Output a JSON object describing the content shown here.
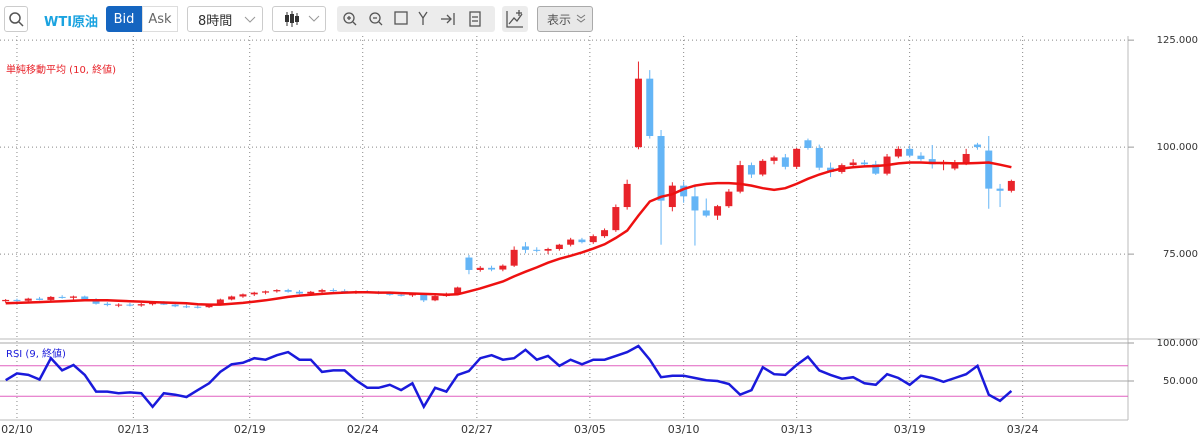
{
  "toolbar": {
    "instrument": "WTI原油",
    "bid": "Bid",
    "ask": "Ask",
    "interval": "8時間",
    "view": "表示"
  },
  "chart_data": [
    {
      "type": "candlestick",
      "xlim": [
        -0.5,
        99.5
      ],
      "ylim": [
        55.4,
        125.5
      ],
      "yticks": [
        {
          "value": 125,
          "label": "125.000"
        },
        {
          "value": 100,
          "label": "100.000"
        },
        {
          "value": 75,
          "label": "75.000"
        }
      ],
      "grid": true,
      "up_color": "#e8232a",
      "down_color": "#64b5f6",
      "ohlc": {
        "open": [
          64.0,
          64.3,
          64.1,
          64.6,
          64.3,
          65.0,
          64.8,
          65.1,
          64.4,
          63.4,
          63.1,
          63.2,
          63.0,
          63.3,
          63.6,
          63.2,
          62.8,
          62.7,
          62.6,
          63.3,
          64.4,
          65.1,
          65.6,
          66.0,
          66.3,
          66.6,
          66.2,
          65.8,
          66.2,
          66.6,
          66.4,
          66.1,
          66.3,
          66.0,
          65.8,
          65.5,
          65.4,
          65.6,
          64.2,
          65.2,
          65.6,
          74.2,
          71.3,
          71.8,
          71.4,
          72.3,
          76.8,
          76.0,
          75.8,
          76.2,
          77.2,
          78.4,
          77.8,
          79.2,
          80.6,
          86.0,
          100.0,
          116.0,
          102.6,
          86.0,
          91.0,
          88.5,
          85.2,
          84.0,
          86.2,
          89.6,
          95.8,
          93.6,
          96.8,
          97.6,
          95.4,
          101.6,
          99.8,
          95.2,
          94.2,
          95.8,
          96.4,
          96.0,
          93.8,
          97.8,
          99.6,
          98.0,
          97.2,
          96.0,
          95.0,
          96.2,
          100.6,
          99.2,
          90.3,
          89.8
        ],
        "high": [
          64.5,
          64.6,
          64.8,
          65.0,
          65.2,
          65.4,
          65.3,
          65.3,
          64.7,
          63.8,
          63.5,
          63.6,
          63.6,
          63.9,
          64.0,
          63.5,
          63.2,
          63.0,
          63.4,
          64.6,
          65.3,
          65.8,
          66.2,
          66.5,
          66.8,
          66.9,
          66.6,
          66.4,
          66.9,
          67.0,
          66.8,
          66.5,
          66.6,
          66.4,
          66.2,
          65.9,
          65.8,
          65.9,
          65.4,
          66.0,
          67.4,
          74.8,
          72.2,
          72.3,
          72.6,
          76.8,
          77.8,
          76.6,
          76.5,
          77.4,
          78.8,
          78.8,
          79.6,
          81.0,
          86.6,
          92.4,
          120.0,
          118.0,
          104.0,
          91.8,
          92.0,
          91.0,
          88.0,
          86.5,
          90.2,
          96.8,
          96.4,
          97.2,
          98.0,
          98.4,
          99.8,
          102.0,
          100.6,
          96.4,
          96.2,
          97.2,
          97.0,
          96.8,
          98.4,
          100.2,
          100.4,
          98.8,
          100.5,
          97.0,
          97.0,
          99.6,
          101.0,
          102.6,
          91.4,
          92.4
        ],
        "low": [
          63.6,
          63.9,
          63.8,
          64.2,
          64.0,
          64.6,
          64.4,
          64.3,
          63.2,
          62.8,
          62.6,
          62.8,
          62.7,
          63.0,
          63.1,
          62.6,
          62.4,
          62.3,
          62.4,
          63.1,
          64.2,
          64.8,
          65.2,
          65.6,
          66.0,
          66.0,
          65.6,
          65.4,
          65.9,
          66.2,
          65.9,
          65.7,
          65.8,
          65.6,
          65.3,
          65.1,
          65.0,
          63.8,
          64.0,
          65.0,
          65.4,
          70.3,
          70.9,
          71.0,
          71.0,
          72.0,
          75.2,
          75.4,
          75.0,
          75.8,
          76.8,
          77.5,
          77.4,
          78.8,
          80.2,
          85.4,
          99.5,
          102.0,
          77.2,
          85.0,
          87.0,
          77.0,
          83.6,
          83.0,
          85.8,
          89.2,
          92.8,
          93.2,
          96.0,
          94.8,
          94.9,
          99.4,
          94.6,
          93.0,
          93.8,
          95.4,
          95.5,
          93.5,
          93.4,
          97.4,
          97.6,
          96.8,
          95.0,
          94.6,
          94.6,
          95.8,
          99.4,
          85.6,
          86.0,
          89.4
        ],
        "close": [
          64.3,
          64.1,
          64.6,
          64.3,
          65.0,
          64.8,
          65.1,
          64.4,
          63.4,
          63.1,
          63.2,
          63.0,
          63.3,
          63.6,
          63.2,
          62.8,
          62.7,
          62.6,
          63.3,
          64.4,
          65.1,
          65.6,
          66.0,
          66.3,
          66.6,
          66.2,
          65.8,
          66.2,
          66.6,
          66.4,
          66.1,
          66.3,
          66.0,
          65.8,
          65.5,
          65.4,
          65.6,
          64.2,
          65.2,
          65.6,
          67.2,
          71.3,
          71.8,
          71.4,
          72.3,
          76.0,
          76.0,
          75.8,
          76.2,
          77.2,
          78.4,
          77.8,
          79.2,
          80.6,
          86.0,
          91.4,
          116.0,
          102.6,
          87.5,
          91.0,
          88.5,
          85.2,
          84.0,
          86.2,
          89.6,
          95.8,
          93.6,
          96.8,
          97.6,
          95.4,
          99.6,
          99.8,
          95.2,
          94.2,
          95.8,
          96.4,
          96.0,
          93.8,
          97.8,
          99.6,
          98.0,
          97.2,
          96.0,
          96.4,
          96.2,
          98.4,
          100.0,
          90.3,
          89.8,
          92.1
        ]
      },
      "series": [
        {
          "name": "単純移動平均 (10, 終値)",
          "color": "#ee1111",
          "values": [
            63.5,
            63.6,
            63.7,
            63.8,
            63.9,
            64.0,
            64.1,
            64.2,
            64.2,
            64.2,
            64.1,
            64.0,
            63.9,
            63.8,
            63.7,
            63.6,
            63.5,
            63.3,
            63.2,
            63.2,
            63.4,
            63.6,
            63.9,
            64.2,
            64.6,
            65.0,
            65.3,
            65.5,
            65.7,
            65.9,
            66.0,
            66.1,
            66.1,
            66.0,
            66.0,
            65.9,
            65.8,
            65.7,
            65.6,
            65.5,
            65.6,
            66.3,
            67.0,
            67.8,
            68.6,
            69.8,
            70.9,
            71.9,
            73.0,
            73.9,
            74.6,
            75.4,
            76.3,
            77.3,
            78.8,
            80.5,
            84.0,
            87.3,
            88.4,
            89.0,
            90.2,
            91.0,
            91.4,
            91.6,
            91.6,
            91.4,
            91.0,
            90.4,
            90.0,
            90.4,
            91.4,
            92.6,
            93.6,
            94.4,
            95.0,
            95.3,
            95.5,
            95.6,
            95.8,
            96.2,
            96.4,
            96.4,
            96.3,
            96.3,
            96.2,
            96.2,
            96.3,
            96.4,
            95.9,
            95.3
          ]
        }
      ]
    },
    {
      "type": "line",
      "xlim": [
        -0.5,
        99.5
      ],
      "xticks": [
        {
          "value": 1,
          "label": "02/10"
        },
        {
          "value": 11.3,
          "label": "02/13"
        },
        {
          "value": 21.6,
          "label": "02/19"
        },
        {
          "value": 31.6,
          "label": "02/24"
        },
        {
          "value": 41.7,
          "label": "02/27"
        },
        {
          "value": 51.7,
          "label": "03/05"
        },
        {
          "value": 60,
          "label": "03/10"
        },
        {
          "value": 70,
          "label": "03/13"
        },
        {
          "value": 80,
          "label": "03/19"
        },
        {
          "value": 90,
          "label": "03/24"
        }
      ],
      "ylim": [
        0,
        100
      ],
      "yticks": [
        {
          "value": 100,
          "label": "100.000"
        },
        {
          "value": 50,
          "label": "50.000"
        }
      ],
      "bands": [
        70,
        30
      ],
      "band_color": "#e060c0",
      "series": [
        {
          "name": "RSI (9, 終値)",
          "color": "#1a1adb",
          "values": [
            51,
            60,
            58,
            52,
            80,
            64,
            71,
            58,
            36,
            36,
            34,
            35,
            34,
            16,
            34,
            32,
            29,
            38,
            47,
            62,
            72,
            74,
            80,
            78,
            84,
            88,
            78,
            78,
            62,
            64,
            64,
            51,
            41,
            41,
            45,
            38,
            47,
            16,
            41,
            36,
            58,
            63,
            80,
            84,
            78,
            80,
            91,
            78,
            83,
            70,
            78,
            72,
            78,
            78,
            83,
            88,
            96,
            78,
            55,
            57,
            57,
            54,
            51,
            50,
            46,
            32,
            38,
            68,
            59,
            58,
            71,
            82,
            64,
            58,
            53,
            55,
            47,
            45,
            59,
            54,
            45,
            57,
            54,
            49,
            54,
            59,
            70,
            32,
            24,
            37
          ]
        }
      ]
    }
  ]
}
